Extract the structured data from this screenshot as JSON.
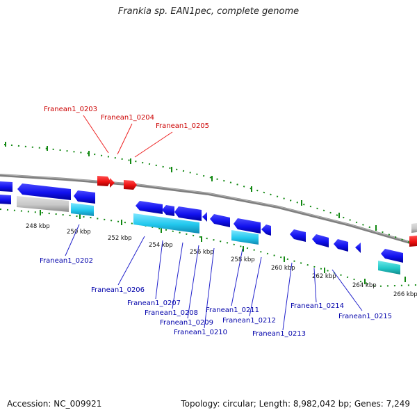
{
  "title": "Frankia sp. EAN1pec, complete genome",
  "footer": {
    "accession": "Accession: NC_009921",
    "topology": "Topology: circular; Length: 8,982,042 bp; Genes: 7,249"
  },
  "colors": {
    "red_gene": "#ee1111",
    "blue_gene": "#1111ee",
    "cyan_gene": "#22c8ee",
    "teal_gene": "#22c8c8",
    "gray_gene": "#c8c8c8",
    "red_label": "#cc0000",
    "blue_label": "#0000aa",
    "tick_green": "#118811",
    "backbone": "#7f7f7f"
  },
  "scale_labels": [
    "248 kbp",
    "250 kbp",
    "252 kbp",
    "254 kbp",
    "256 kbp",
    "258 kbp",
    "260 kbp",
    "262 kbp",
    "264 kbp",
    "266 kbp"
  ],
  "labels_top": [
    "Franean1_0203",
    "Franean1_0204",
    "Franean1_0205"
  ],
  "labels_bottom": [
    "Franean1_0202",
    "Franean1_0206",
    "Franean1_0207",
    "Franean1_0208",
    "Franean1_0209",
    "Franean1_0210",
    "Franean1_0211",
    "Franean1_0212",
    "Franean1_0213",
    "Franean1_0214",
    "Franean1_0215"
  ]
}
